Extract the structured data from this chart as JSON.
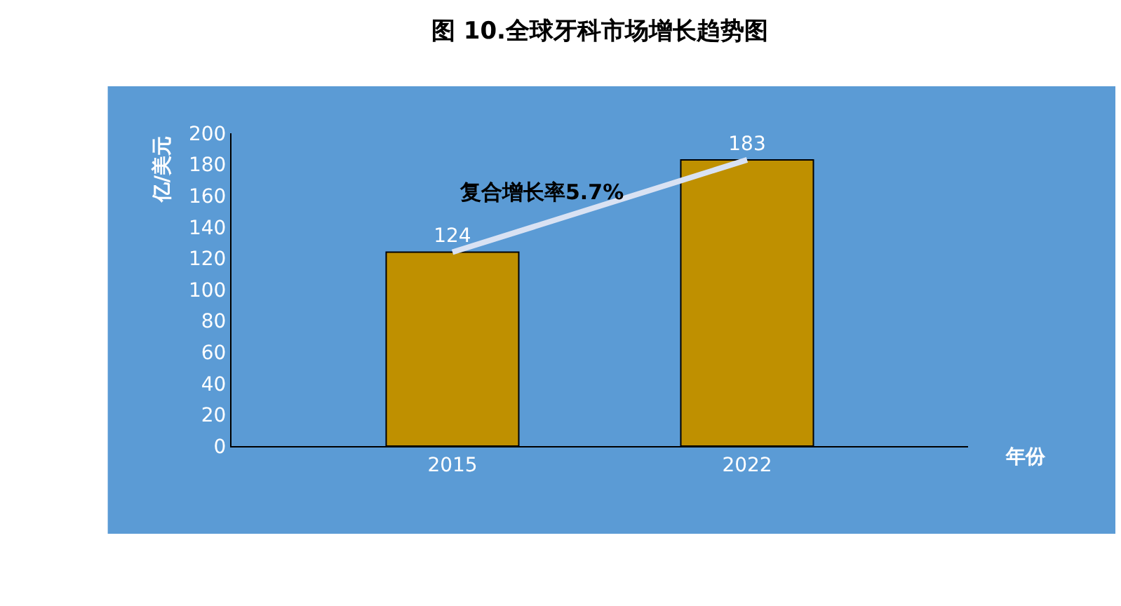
{
  "chart_data": {
    "type": "bar",
    "title": "图 10.全球牙科市场增长趋势图",
    "xlabel": "年份",
    "ylabel": "亿/美元",
    "categories": [
      "2015",
      "2022"
    ],
    "series": [
      {
        "color": "#bf9000",
        "values": [
          124,
          183
        ],
        "value_labels": [
          "124",
          "183"
        ]
      },
      {
        "type": "line",
        "color": "#d9e2f3",
        "values": [
          124,
          183
        ]
      }
    ],
    "ylim": [
      0,
      200
    ],
    "yticks": [
      0,
      20,
      40,
      60,
      80,
      100,
      120,
      140,
      160,
      180,
      200
    ],
    "grid": false,
    "legend": false,
    "marker": "none",
    "annotations": [
      "复合增长率5.7%"
    ]
  }
}
